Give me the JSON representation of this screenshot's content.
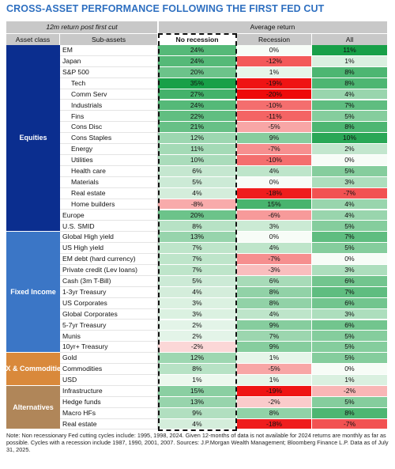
{
  "title": "CROSS-ASSET PERFORMANCE FOLLOWING THE FIRST FED CUT",
  "table": {
    "header": {
      "left": "12m return post first cut",
      "right": "Average return",
      "columns": [
        "Asset class",
        "Sub-assets",
        "No recession",
        "Recession",
        "All"
      ]
    },
    "groups": [
      {
        "name": "Equities",
        "rows": [
          {
            "name": "EM",
            "cells": [
              "24%",
              "0%",
              "11%"
            ]
          },
          {
            "name": "Japan",
            "cells": [
              "24%",
              "-12%",
              "1%"
            ]
          },
          {
            "name": "S&P 500",
            "cells": [
              "20%",
              "1%",
              "8%"
            ],
            "sectors": [
              {
                "name": "Tech",
                "cells": [
                  "35%",
                  "-19%",
                  "8%"
                ]
              },
              {
                "name": "Comm Serv",
                "cells": [
                  "27%",
                  "-20%",
                  "4%"
                ]
              },
              {
                "name": "Industrials",
                "cells": [
                  "24%",
                  "-10%",
                  "7%"
                ]
              },
              {
                "name": "Fins",
                "cells": [
                  "22%",
                  "-11%",
                  "5%"
                ]
              },
              {
                "name": "Cons Disc",
                "cells": [
                  "21%",
                  "-5%",
                  "8%"
                ]
              },
              {
                "name": "Cons Staples",
                "cells": [
                  "12%",
                  "9%",
                  "10%"
                ]
              },
              {
                "name": "Energy",
                "cells": [
                  "11%",
                  "-7%",
                  "2%"
                ]
              },
              {
                "name": "Utilities",
                "cells": [
                  "10%",
                  "-10%",
                  "0%"
                ]
              },
              {
                "name": "Health care",
                "cells": [
                  "6%",
                  "4%",
                  "5%"
                ]
              },
              {
                "name": "Materials",
                "cells": [
                  "5%",
                  "0%",
                  "3%"
                ]
              },
              {
                "name": "Real estate",
                "cells": [
                  "4%",
                  "-18%",
                  "-7%"
                ]
              },
              {
                "name": "Home builders",
                "cells": [
                  "-8%",
                  "15%",
                  "4%"
                ]
              }
            ]
          },
          {
            "name": "Europe",
            "cells": [
              "20%",
              "-6%",
              "4%"
            ]
          },
          {
            "name": "U.S. SMID",
            "cells": [
              "8%",
              "3%",
              "5%"
            ]
          }
        ]
      },
      {
        "name": "Fixed Income",
        "rows": [
          {
            "name": "Global High yield",
            "cells": [
              "13%",
              "0%",
              "7%"
            ]
          },
          {
            "name": "US High yield",
            "cells": [
              "7%",
              "4%",
              "5%"
            ]
          },
          {
            "name": "EM debt (hard currency)",
            "cells": [
              "7%",
              "-7%",
              "0%"
            ]
          },
          {
            "name": "Private credit (Lev loans)",
            "cells": [
              "7%",
              "-3%",
              "3%"
            ]
          },
          {
            "name": "Cash (3m T-Bill)",
            "cells": [
              "5%",
              "6%",
              "6%"
            ]
          },
          {
            "name": "1-3yr Treasury",
            "cells": [
              "4%",
              "8%",
              "7%"
            ]
          },
          {
            "name": "US Corporates",
            "cells": [
              "3%",
              "8%",
              "6%"
            ]
          },
          {
            "name": "Global Corporates",
            "cells": [
              "3%",
              "4%",
              "3%"
            ]
          },
          {
            "name": "5-7yr Treasury",
            "cells": [
              "2%",
              "9%",
              "6%"
            ]
          },
          {
            "name": "Munis",
            "cells": [
              "2%",
              "7%",
              "5%"
            ]
          },
          {
            "name": "10yr+ Treasury",
            "cells": [
              "-2%",
              "9%",
              "5%"
            ]
          }
        ]
      },
      {
        "name": "FX & Commodities",
        "rows": [
          {
            "name": "Gold",
            "cells": [
              "12%",
              "1%",
              "5%"
            ]
          },
          {
            "name": "Commodities",
            "cells": [
              "8%",
              "-5%",
              "0%"
            ]
          },
          {
            "name": "USD",
            "cells": [
              "1%",
              "1%",
              "1%"
            ]
          }
        ]
      },
      {
        "name": "Alternatives",
        "rows": [
          {
            "name": "Infrastructure",
            "cells": [
              "15%",
              "-19%",
              "-2%"
            ]
          },
          {
            "name": "Hedge funds",
            "cells": [
              "13%",
              "-2%",
              "5%"
            ]
          },
          {
            "name": "Macro HFs",
            "cells": [
              "9%",
              "8%",
              "8%"
            ]
          },
          {
            "name": "Real estate",
            "cells": [
              "4%",
              "-18%",
              "-7%"
            ]
          }
        ]
      }
    ]
  },
  "note": "Note: Non recessionary Fed cutting cycles include: 1995, 1998,  2024. Given 12-months of data is not available for 2024 returns are monthly as far as possible. Cycles with a recession include 1987, 1990, 2001, 2007. Sources: J.P.Morgan Wealth Management; Bloomberg Finance L.P. Data as of July 31, 2025."
}
